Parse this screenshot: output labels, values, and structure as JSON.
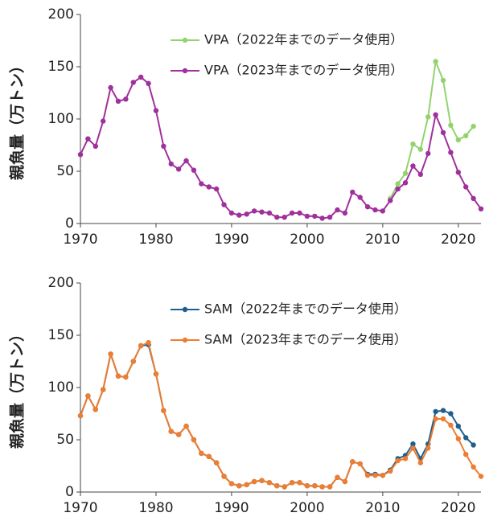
{
  "chart_data": [
    {
      "type": "line",
      "ylabel": "親魚量（万トン）",
      "x": [
        1970,
        1971,
        1972,
        1973,
        1974,
        1975,
        1976,
        1977,
        1978,
        1979,
        1980,
        1981,
        1982,
        1983,
        1984,
        1985,
        1986,
        1987,
        1988,
        1989,
        1990,
        1991,
        1992,
        1993,
        1994,
        1995,
        1996,
        1997,
        1998,
        1999,
        2000,
        2001,
        2002,
        2003,
        2004,
        2005,
        2006,
        2007,
        2008,
        2009,
        2010,
        2011,
        2012,
        2013,
        2014,
        2015,
        2016,
        2017,
        2018,
        2019,
        2020,
        2021,
        2022,
        2023
      ],
      "series": [
        {
          "name": "VPA（2022年までのデータ使用）",
          "color": "#92d36e",
          "values": [
            null,
            null,
            null,
            null,
            null,
            null,
            null,
            null,
            null,
            null,
            null,
            null,
            null,
            null,
            null,
            null,
            null,
            null,
            null,
            null,
            null,
            null,
            null,
            null,
            null,
            null,
            null,
            null,
            null,
            null,
            null,
            null,
            null,
            null,
            null,
            null,
            null,
            null,
            null,
            null,
            null,
            24,
            38,
            48,
            76,
            71,
            102,
            155,
            137,
            94,
            80,
            84,
            93,
            null
          ]
        },
        {
          "name": "VPA（2023年までのデータ使用）",
          "color": "#a0309c",
          "values": [
            66,
            81,
            74,
            98,
            130,
            117,
            119,
            135,
            140,
            134,
            108,
            74,
            57,
            52,
            60,
            51,
            38,
            35,
            33,
            18,
            10,
            8,
            9,
            12,
            11,
            10,
            6,
            6,
            10,
            10,
            7,
            7,
            5,
            6,
            13,
            10,
            30,
            25,
            16,
            13,
            12,
            22,
            33,
            39,
            55,
            47,
            67,
            104,
            87,
            68,
            49,
            35,
            24,
            14
          ]
        }
      ],
      "xlim": [
        1970,
        2023
      ],
      "ylim": [
        0,
        200
      ],
      "xticks": [
        1970,
        1980,
        1990,
        2000,
        2010,
        2020
      ],
      "yticks": [
        0,
        50,
        100,
        150,
        200
      ]
    },
    {
      "type": "line",
      "ylabel": "親魚量（万トン）",
      "x": [
        1970,
        1971,
        1972,
        1973,
        1974,
        1975,
        1976,
        1977,
        1978,
        1979,
        1980,
        1981,
        1982,
        1983,
        1984,
        1985,
        1986,
        1987,
        1988,
        1989,
        1990,
        1991,
        1992,
        1993,
        1994,
        1995,
        1996,
        1997,
        1998,
        1999,
        2000,
        2001,
        2002,
        2003,
        2004,
        2005,
        2006,
        2007,
        2008,
        2009,
        2010,
        2011,
        2012,
        2013,
        2014,
        2015,
        2016,
        2017,
        2018,
        2019,
        2020,
        2021,
        2022,
        2023
      ],
      "series": [
        {
          "name": "SAM（2022年までのデータ使用）",
          "color": "#1f5f8b",
          "values": [
            73,
            92,
            79,
            98,
            132,
            111,
            110,
            125,
            140,
            141,
            113,
            78,
            58,
            55,
            63,
            50,
            37,
            34,
            28,
            15,
            8,
            6,
            7,
            10,
            11,
            9,
            6,
            5,
            9,
            9,
            6,
            6,
            5,
            5,
            14,
            10,
            29,
            27,
            17,
            17,
            16,
            21,
            32,
            35,
            46,
            32,
            46,
            77,
            78,
            75,
            63,
            52,
            45,
            null
          ]
        },
        {
          "name": "SAM（2023年までのデータ使用）",
          "color": "#ee7d31",
          "values": [
            73,
            92,
            79,
            98,
            132,
            111,
            110,
            125,
            140,
            143,
            113,
            78,
            58,
            55,
            63,
            50,
            37,
            34,
            28,
            15,
            8,
            6,
            7,
            10,
            11,
            9,
            6,
            5,
            9,
            9,
            6,
            6,
            5,
            5,
            14,
            10,
            29,
            27,
            16,
            16,
            16,
            20,
            30,
            32,
            42,
            28,
            42,
            70,
            70,
            64,
            51,
            36,
            24,
            15
          ]
        }
      ],
      "xlim": [
        1970,
        2023
      ],
      "ylim": [
        0,
        200
      ],
      "xticks": [
        1970,
        1980,
        1990,
        2000,
        2010,
        2020
      ],
      "yticks": [
        0,
        50,
        100,
        150,
        200
      ]
    }
  ]
}
